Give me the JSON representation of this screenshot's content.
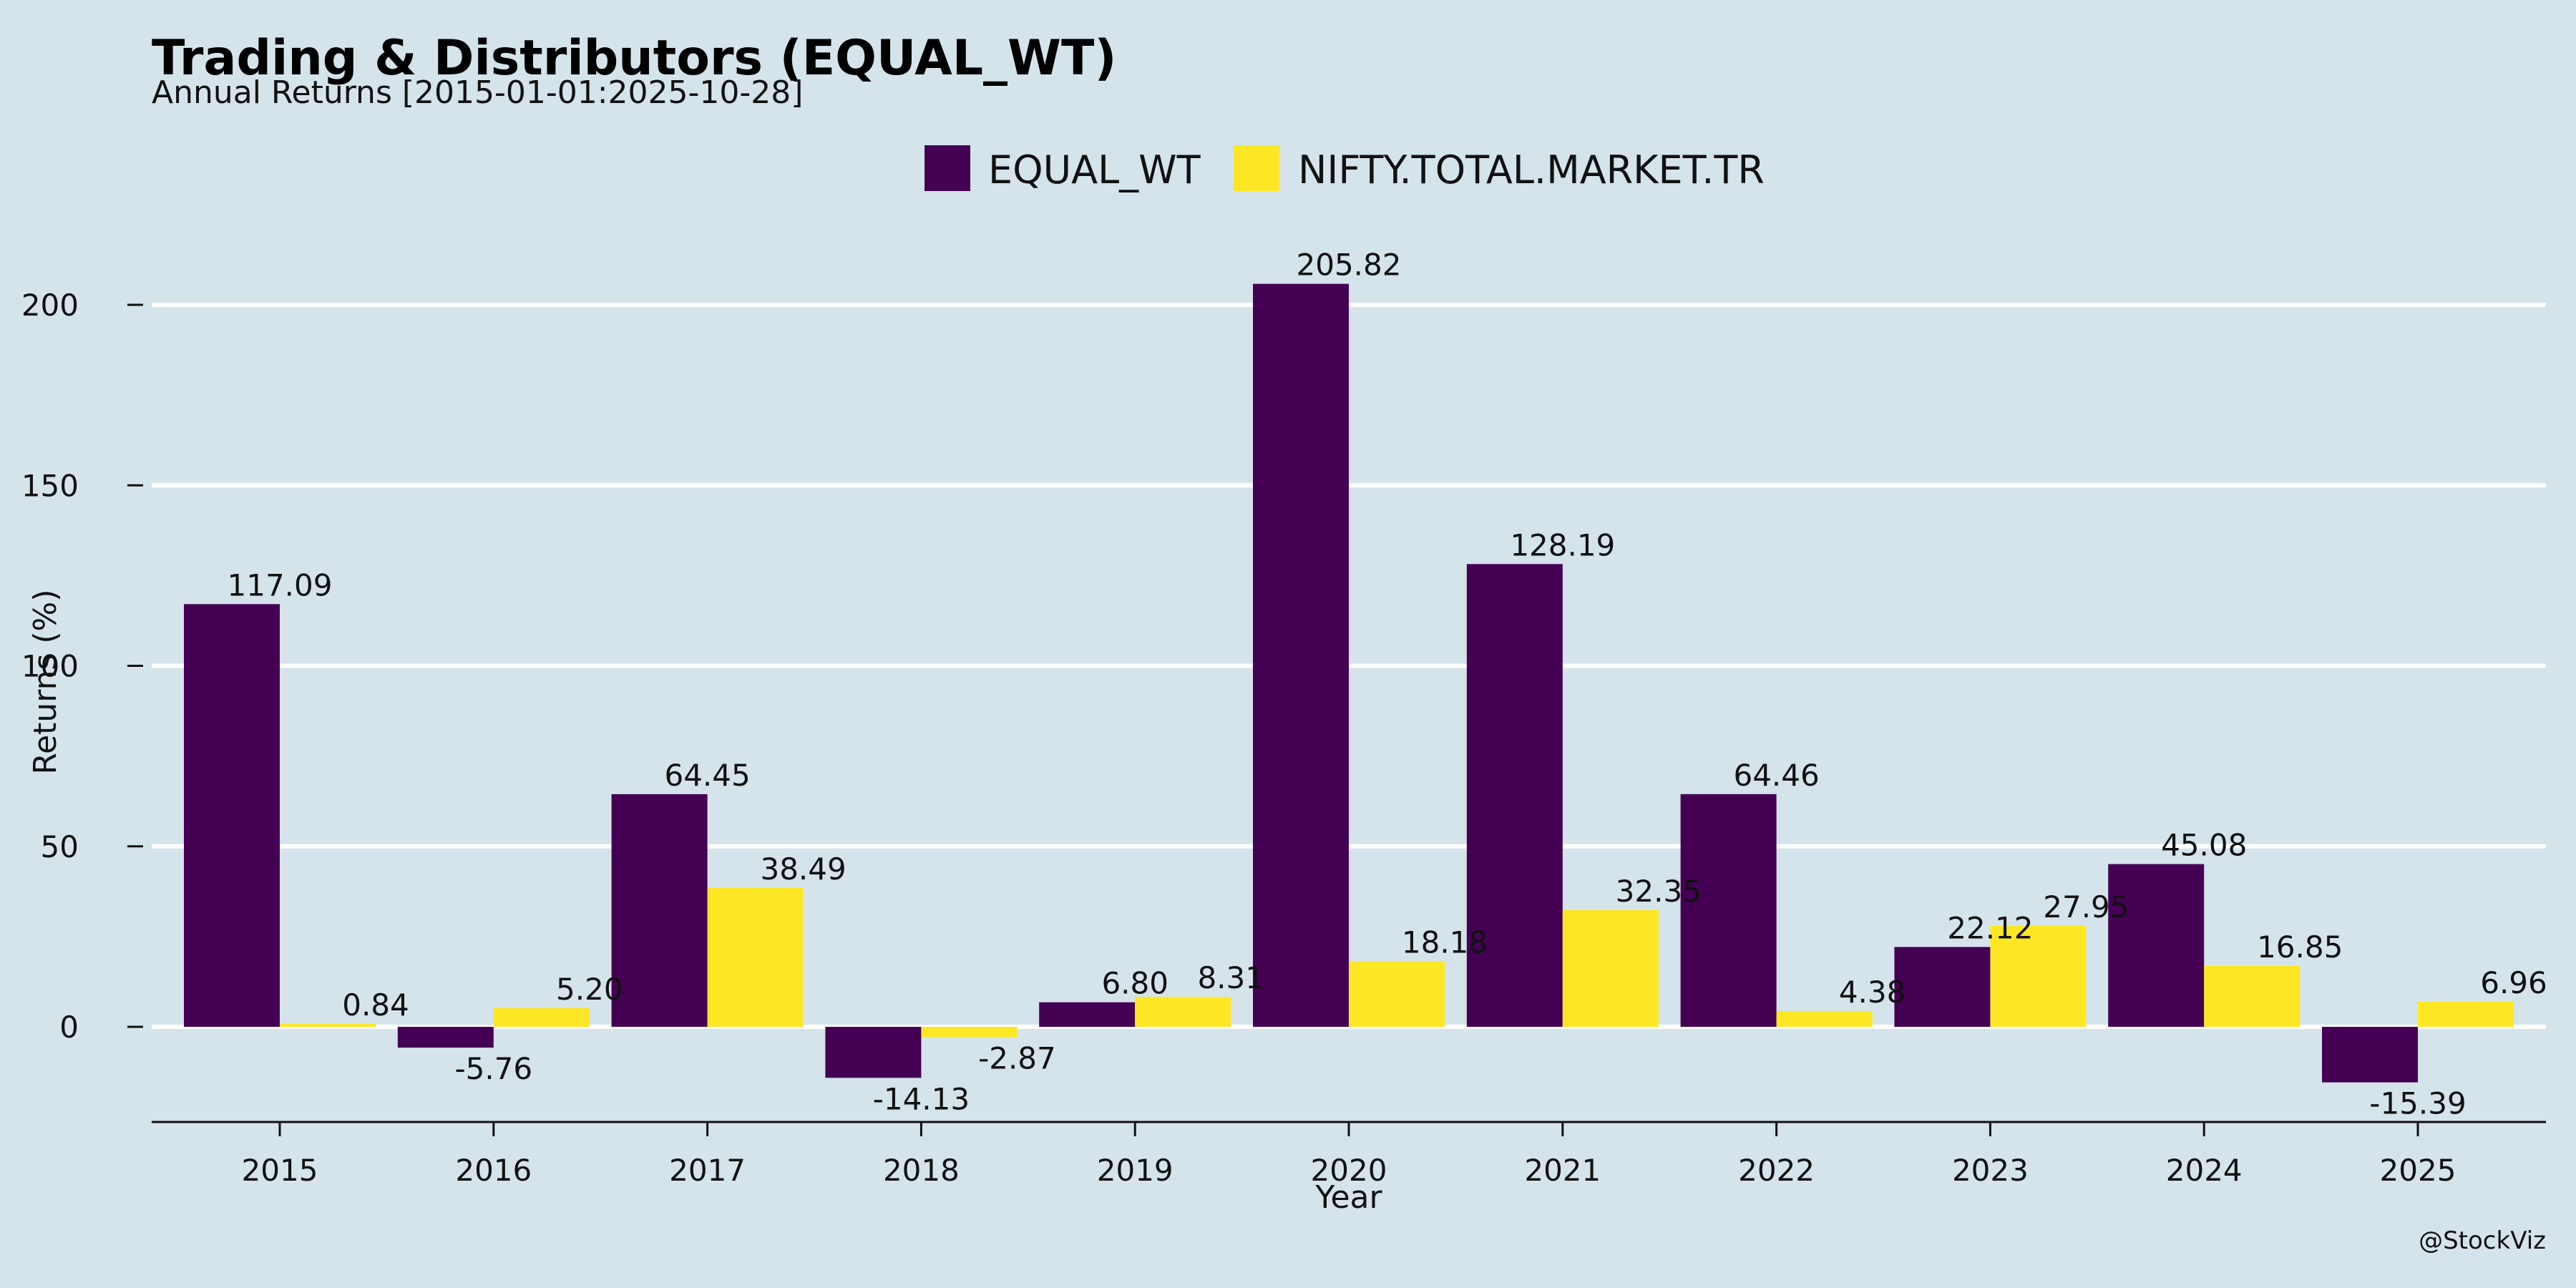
{
  "chart_data": {
    "type": "bar",
    "title": "Trading & Distributors (EQUAL_WT)",
    "subtitle": "Annual Returns [2015-01-01:2025-10-28]",
    "xlabel": "Year",
    "ylabel": "Returns (%)",
    "categories": [
      "2015",
      "2016",
      "2017",
      "2018",
      "2019",
      "2020",
      "2021",
      "2022",
      "2023",
      "2024",
      "2025"
    ],
    "series": [
      {
        "name": "EQUAL_WT",
        "color": "#440154",
        "values": [
          117.09,
          -5.76,
          64.45,
          -14.13,
          6.8,
          205.82,
          128.19,
          64.46,
          22.12,
          45.08,
          -15.39
        ],
        "labels": [
          "117.09",
          "-5.76",
          "64.45",
          "-14.13",
          "6.80",
          "205.82",
          "128.19",
          "64.46",
          "22.12",
          "45.08",
          "-15.39"
        ]
      },
      {
        "name": "NIFTY.TOTAL.MARKET.TR",
        "color": "#fde725",
        "values": [
          0.84,
          5.2,
          38.49,
          -2.87,
          8.31,
          18.18,
          32.35,
          4.38,
          27.95,
          16.85,
          6.96
        ],
        "labels": [
          "0.84",
          "5.20",
          "38.49",
          "-2.87",
          "8.31",
          "18.18",
          "32.35",
          "4.38",
          "27.95",
          "16.85",
          "6.96"
        ]
      }
    ],
    "yticks": [
      0,
      50,
      100,
      150,
      200
    ],
    "ylim": [
      -27,
      222
    ],
    "grid": true,
    "legend": "top-center",
    "credit": "@StockViz"
  }
}
